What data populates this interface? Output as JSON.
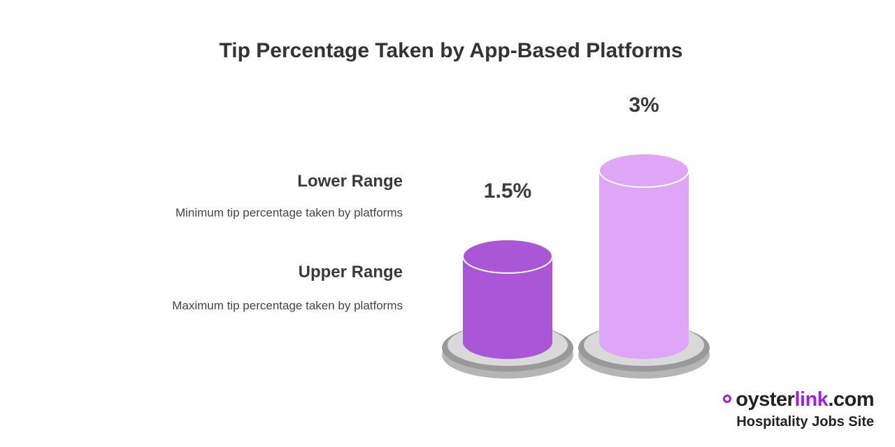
{
  "chart_data": {
    "type": "cylinder",
    "title": "Tip Percentage Taken by App-Based Platforms",
    "categories": [
      "Lower Range",
      "Upper Range"
    ],
    "descriptions": [
      "Minimum tip percentage taken by platforms",
      "Maximum tip percentage taken by platforms"
    ],
    "values": [
      1.5,
      3
    ],
    "value_labels": [
      "1.5%",
      "3%"
    ],
    "colors": [
      "#a957d6",
      "#dfa6f8"
    ]
  },
  "brand": {
    "name_parts": [
      "oyster",
      "link",
      ".com"
    ],
    "tagline": "Hospitality Jobs Site"
  }
}
